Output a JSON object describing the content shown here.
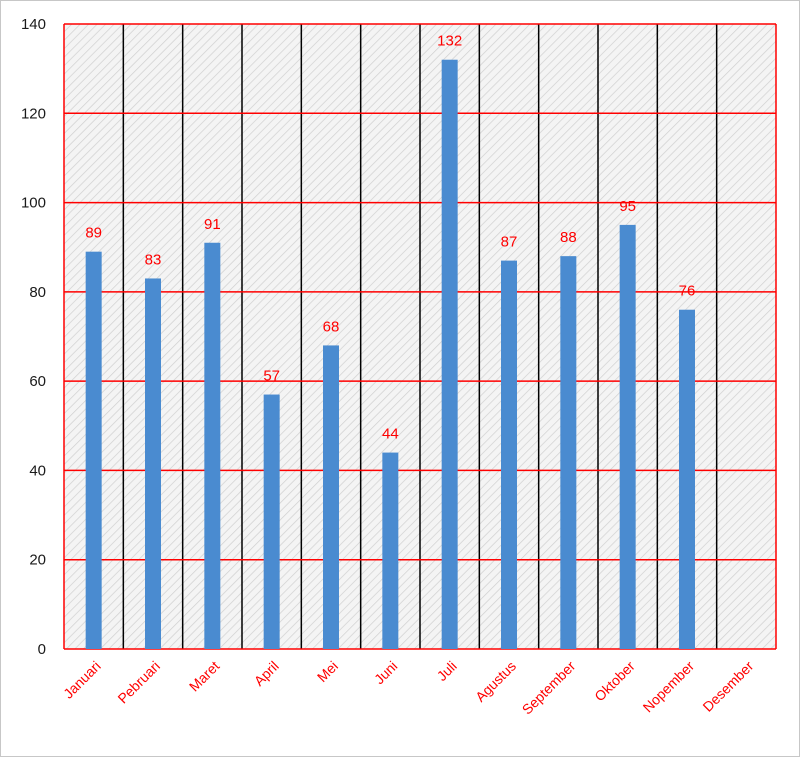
{
  "chart_data": {
    "type": "bar",
    "categories": [
      "Januari",
      "Pebruari",
      "Maret",
      "April",
      "Mei",
      "Juni",
      "Juli",
      "Agustus",
      "September",
      "Oktober",
      "Nopember",
      "Desember"
    ],
    "values": [
      89,
      83,
      91,
      57,
      68,
      44,
      132,
      87,
      88,
      95,
      76,
      null
    ],
    "data_labels": [
      "89",
      "83",
      "91",
      "57",
      "68",
      "44",
      "132",
      "87",
      "88",
      "95",
      "76",
      ""
    ],
    "ylim": [
      0,
      140
    ],
    "yticks": [
      0,
      20,
      40,
      60,
      80,
      100,
      120,
      140
    ],
    "title": "",
    "xlabel": "",
    "ylabel": "",
    "grid": true,
    "legend": "none",
    "colors": {
      "bar": "#4a8bd0",
      "horizontal_grid": "#ff0000",
      "vertical_grid": "#000000",
      "labels": "#ff0000",
      "axis_text": "#1a1a1a",
      "plot_background": "#f2f2f2",
      "hatch": "#cfcfcf"
    }
  }
}
